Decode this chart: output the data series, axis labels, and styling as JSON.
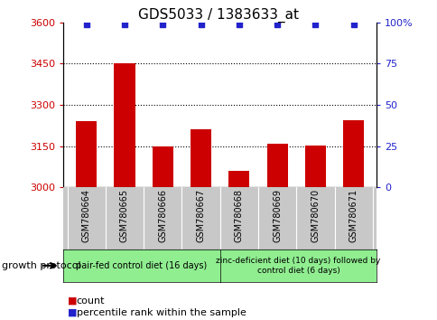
{
  "title": "GDS5033 / 1383633_at",
  "samples": [
    "GSM780664",
    "GSM780665",
    "GSM780666",
    "GSM780667",
    "GSM780668",
    "GSM780669",
    "GSM780670",
    "GSM780671"
  ],
  "counts": [
    3240,
    3450,
    3150,
    3210,
    3060,
    3158,
    3152,
    3245
  ],
  "percentiles": [
    99,
    99,
    99,
    99,
    99,
    99,
    99,
    99
  ],
  "ylim_left": [
    3000,
    3600
  ],
  "yticks_left": [
    3000,
    3150,
    3300,
    3450,
    3600
  ],
  "ylim_right": [
    0,
    100
  ],
  "yticks_right": [
    0,
    25,
    50,
    75,
    100
  ],
  "bar_color": "#cc0000",
  "dot_color": "#2222cc",
  "bar_width": 0.55,
  "group1_label": "pair-fed control diet (16 days)",
  "group2_label": "zinc-deficient diet (10 days) followed by\ncontrol diet (6 days)",
  "group1_color": "#90ee90",
  "group2_color": "#90ee90",
  "protocol_label": "growth protocol",
  "legend_count_label": "count",
  "legend_percentile_label": "percentile rank within the sample",
  "grid_color": "#000000",
  "tick_color_left": "#cc0000",
  "tick_color_right": "#2222cc",
  "sample_box_color": "#c8c8c8",
  "plot_bg_color": "#ffffff",
  "fig_bg_color": "#ffffff"
}
